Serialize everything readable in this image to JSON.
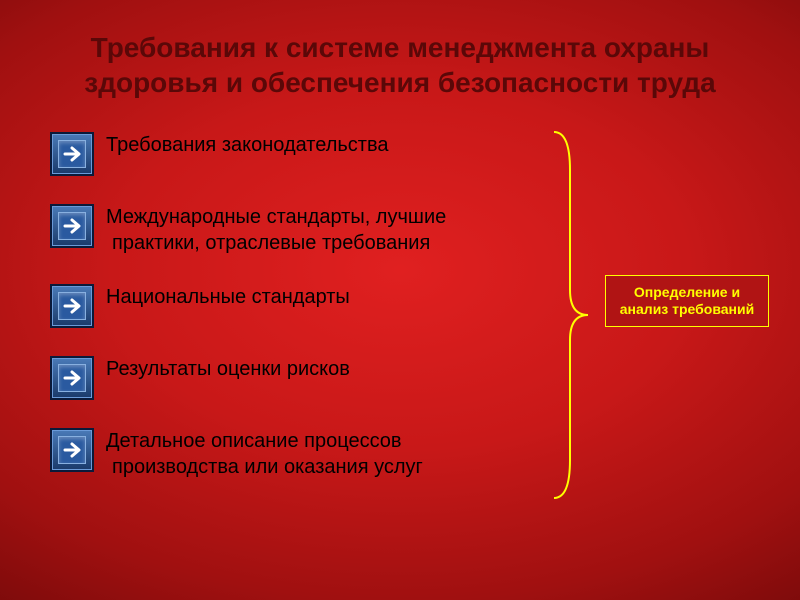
{
  "slide": {
    "title": "Требования к системе менеджмента охраны здоровья и обеспечения безопасности труда",
    "title_color": "#5a0808",
    "items": [
      {
        "text": "Требования законодательства"
      },
      {
        "text": "Международные стандарты, лучшие практики, отраслевые требования"
      },
      {
        "text": "Национальные стандарты"
      },
      {
        "text": "Результаты оценки рисков"
      },
      {
        "text": "Детальное описание процессов производства или оказания услуг"
      }
    ],
    "item_text_color": "#000000",
    "item_fontsize": 20,
    "bullet": {
      "type": "arrow-right-square",
      "bg_gradient": [
        "#4a7ab8",
        "#1a3a6a"
      ],
      "arrow_color": "#ffffff",
      "border_color": "#0a1a3a"
    },
    "brace": {
      "stroke": "#ffff00",
      "stroke_width": 2
    },
    "result_box": {
      "text": "Определение и анализ требований",
      "text_color": "#ffff00",
      "border_color": "#ffff00",
      "bg_color": "#b01414"
    },
    "background": {
      "type": "radial-gradient",
      "colors": [
        "#e02020",
        "#c81818",
        "#a01010",
        "#6a0808",
        "#380404"
      ]
    }
  }
}
